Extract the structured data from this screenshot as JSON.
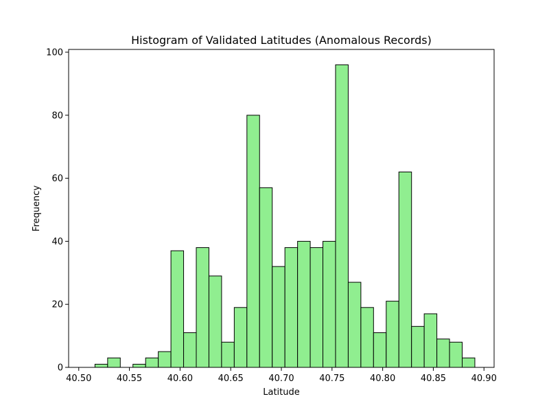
{
  "chart_data": {
    "type": "bar",
    "title": "Histogram of Validated Latitudes (Anomalous Records)",
    "xlabel": "Latitude",
    "ylabel": "Frequency",
    "xlim": [
      40.5,
      40.9
    ],
    "ylim": [
      0,
      100
    ],
    "x_ticks": [
      "40.50",
      "40.55",
      "40.60",
      "40.65",
      "40.70",
      "40.75",
      "40.80",
      "40.85",
      "40.90"
    ],
    "y_ticks": [
      "0",
      "20",
      "40",
      "60",
      "80",
      "100"
    ],
    "bin_start": 40.516,
    "bin_width": 0.0125,
    "values": [
      1,
      3,
      0,
      1,
      3,
      5,
      37,
      11,
      38,
      29,
      8,
      19,
      80,
      57,
      32,
      38,
      40,
      38,
      40,
      96,
      27,
      19,
      11,
      21,
      62,
      13,
      17,
      9,
      8,
      3
    ],
    "bar_color": "#90ee90",
    "edge_color": "#000000",
    "grid": false
  }
}
